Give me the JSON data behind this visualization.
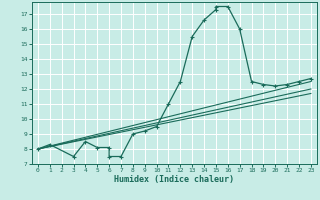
{
  "xlabel": "Humidex (Indice chaleur)",
  "background_color": "#c8ece6",
  "grid_color": "#ffffff",
  "line_color": "#1a6b5a",
  "xlim": [
    -0.5,
    23.5
  ],
  "ylim": [
    7,
    17.8
  ],
  "xticks": [
    0,
    1,
    2,
    3,
    4,
    5,
    6,
    7,
    8,
    9,
    10,
    11,
    12,
    13,
    14,
    15,
    16,
    17,
    18,
    19,
    20,
    21,
    22,
    23
  ],
  "yticks": [
    7,
    8,
    9,
    10,
    11,
    12,
    13,
    14,
    15,
    16,
    17
  ],
  "curve1_x": [
    0,
    1,
    3,
    4,
    5,
    6,
    6,
    7,
    8,
    9,
    10,
    11,
    12,
    13,
    14,
    15,
    15,
    16,
    17,
    18,
    19,
    20,
    21,
    22,
    23
  ],
  "curve1_y": [
    8.0,
    8.3,
    7.5,
    8.5,
    8.1,
    8.1,
    7.5,
    7.5,
    9.0,
    9.2,
    9.5,
    11.0,
    12.5,
    15.5,
    16.6,
    17.3,
    17.5,
    17.5,
    16.0,
    12.5,
    12.3,
    12.2,
    12.3,
    12.5,
    12.7
  ],
  "line1_x": [
    0,
    23
  ],
  "line1_y": [
    8.0,
    12.5
  ],
  "line2_x": [
    0,
    23
  ],
  "line2_y": [
    8.0,
    12.0
  ],
  "line3_x": [
    0,
    23
  ],
  "line3_y": [
    8.0,
    11.7
  ]
}
